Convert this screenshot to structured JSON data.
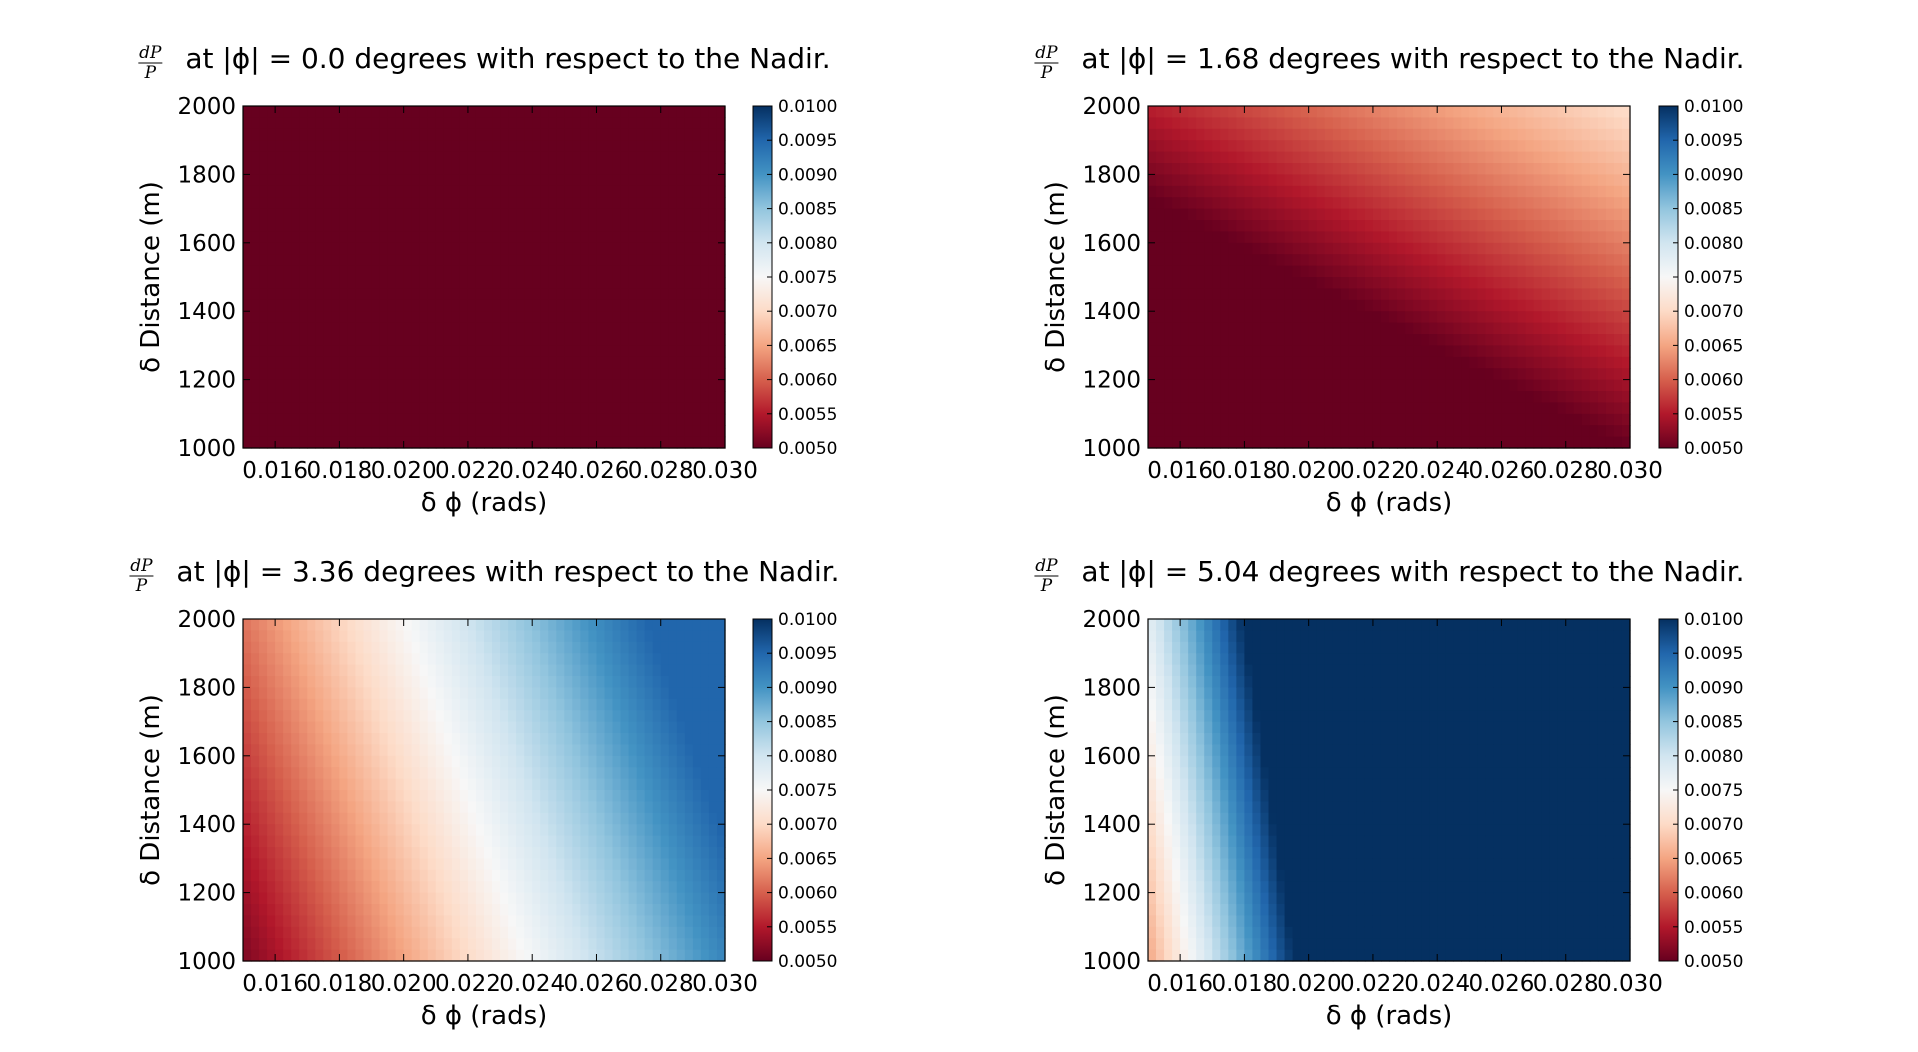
{
  "chart_data": [
    {
      "type": "heatmap",
      "title_prefix": "dP/P",
      "title_frac_num": "dP",
      "title_frac_den": "P",
      "title_text": "at |ϕ| = 0.0 degrees with respect to the Nadir.",
      "xlabel": "δ ϕ (rads)",
      "ylabel": "δ Distance (m)",
      "xlim": [
        0.015,
        0.03
      ],
      "ylim": [
        1000,
        2000
      ],
      "x_ticks": [
        "0.016",
        "0.018",
        "0.020",
        "0.022",
        "0.024",
        "0.026",
        "0.028",
        "0.030"
      ],
      "y_ticks": [
        "1000",
        "1200",
        "1400",
        "1600",
        "1800",
        "2000"
      ],
      "colorbar": {
        "vmin": 0.005,
        "vmax": 0.01,
        "colormap": "RdBu",
        "ticks": [
          "0.0050",
          "0.0055",
          "0.0060",
          "0.0065",
          "0.0070",
          "0.0075",
          "0.0080",
          "0.0085",
          "0.0090",
          "0.0095",
          "0.0100"
        ]
      },
      "phi_deg": 0.0,
      "description_values": {
        "value_range": [
          0.005,
          0.005
        ]
      }
    },
    {
      "type": "heatmap",
      "title_prefix": "dP/P",
      "title_frac_num": "dP",
      "title_frac_den": "P",
      "title_text": "at |ϕ| = 1.68 degrees with respect to the Nadir.",
      "xlabel": "δ ϕ (rads)",
      "ylabel": "δ Distance (m)",
      "xlim": [
        0.015,
        0.03
      ],
      "ylim": [
        1000,
        2000
      ],
      "x_ticks": [
        "0.016",
        "0.018",
        "0.020",
        "0.022",
        "0.024",
        "0.026",
        "0.028",
        "0.030"
      ],
      "y_ticks": [
        "1000",
        "1200",
        "1400",
        "1600",
        "1800",
        "2000"
      ],
      "colorbar": {
        "vmin": 0.005,
        "vmax": 0.01,
        "colormap": "RdBu",
        "ticks": [
          "0.0050",
          "0.0055",
          "0.0060",
          "0.0065",
          "0.0070",
          "0.0075",
          "0.0080",
          "0.0085",
          "0.0090",
          "0.0095",
          "0.0100"
        ]
      },
      "phi_deg": 1.68,
      "description_values": {
        "value_range": [
          0.005,
          0.0064
        ]
      }
    },
    {
      "type": "heatmap",
      "title_prefix": "dP/P",
      "title_frac_num": "dP",
      "title_frac_den": "P",
      "title_text": "at |ϕ| = 3.36 degrees with respect to the Nadir.",
      "xlabel": "δ ϕ (rads)",
      "ylabel": "δ Distance (m)",
      "xlim": [
        0.015,
        0.03
      ],
      "ylim": [
        1000,
        2000
      ],
      "x_ticks": [
        "0.016",
        "0.018",
        "0.020",
        "0.022",
        "0.024",
        "0.026",
        "0.028",
        "0.030"
      ],
      "y_ticks": [
        "1000",
        "1200",
        "1400",
        "1600",
        "1800",
        "2000"
      ],
      "colorbar": {
        "vmin": 0.005,
        "vmax": 0.01,
        "colormap": "RdBu",
        "ticks": [
          "0.0050",
          "0.0055",
          "0.0060",
          "0.0065",
          "0.0070",
          "0.0075",
          "0.0080",
          "0.0085",
          "0.0090",
          "0.0095",
          "0.0100"
        ]
      },
      "phi_deg": 3.36,
      "description_values": {
        "value_range": [
          0.0051,
          0.0093
        ]
      }
    },
    {
      "type": "heatmap",
      "title_prefix": "dP/P",
      "title_frac_num": "dP",
      "title_frac_den": "P",
      "title_text": "at |ϕ| = 5.04 degrees with respect to the Nadir.",
      "xlabel": "δ ϕ (rads)",
      "ylabel": "δ Distance (m)",
      "xlim": [
        0.015,
        0.03
      ],
      "ylim": [
        1000,
        2000
      ],
      "x_ticks": [
        "0.016",
        "0.018",
        "0.020",
        "0.022",
        "0.024",
        "0.026",
        "0.028",
        "0.030"
      ],
      "y_ticks": [
        "1000",
        "1200",
        "1400",
        "1600",
        "1800",
        "2000"
      ],
      "colorbar": {
        "vmin": 0.005,
        "vmax": 0.01,
        "colormap": "RdBu",
        "ticks": [
          "0.0050",
          "0.0055",
          "0.0060",
          "0.0065",
          "0.0070",
          "0.0075",
          "0.0080",
          "0.0085",
          "0.0090",
          "0.0095",
          "0.0100"
        ]
      },
      "phi_deg": 5.04,
      "description_values": {
        "value_range": [
          0.0065,
          0.01
        ]
      }
    }
  ]
}
